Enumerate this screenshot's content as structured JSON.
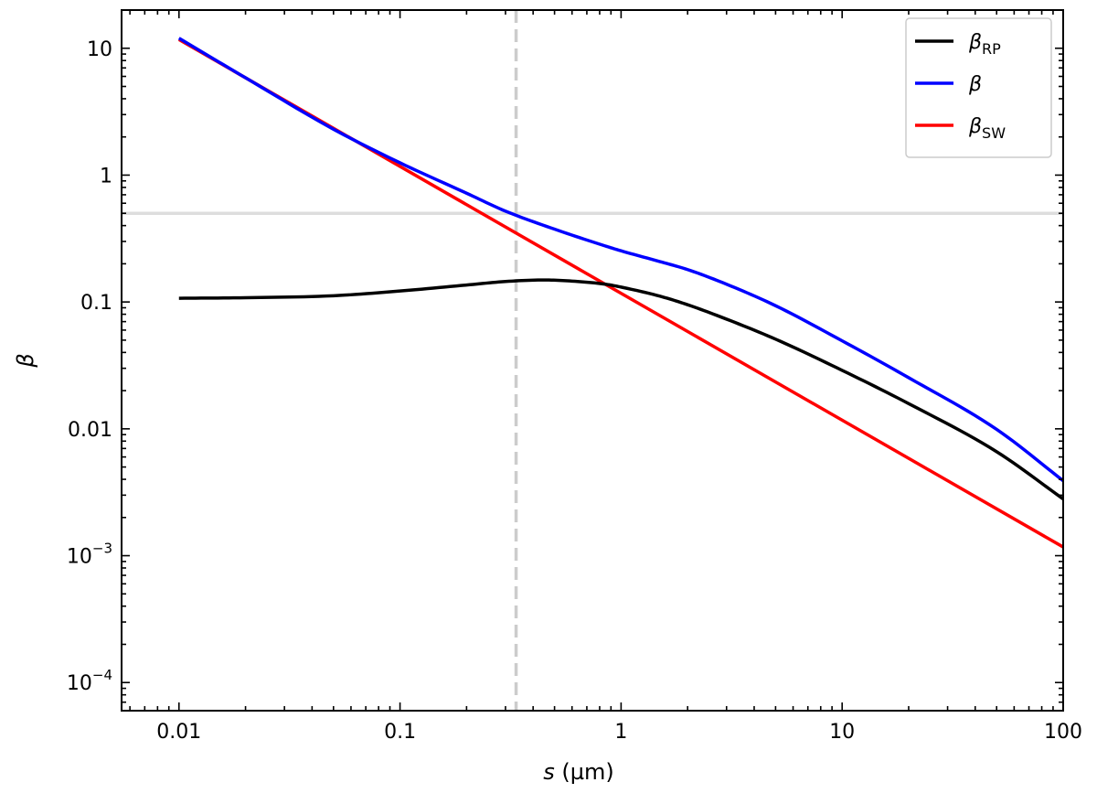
{
  "chart_data": {
    "type": "line",
    "title": "",
    "xlabel": {
      "symbol": "s",
      "unit": " (µm)"
    },
    "ylabel": {
      "symbol": "β"
    },
    "xscale": "log",
    "yscale": "log",
    "xlim": [
      0.0055,
      100
    ],
    "ylim": [
      6e-05,
      20
    ],
    "x_ticks": [
      {
        "value": 0.01,
        "label": "0.01"
      },
      {
        "value": 0.1,
        "label": "0.1"
      },
      {
        "value": 1,
        "label": "1"
      },
      {
        "value": 10,
        "label": "10"
      },
      {
        "value": 100,
        "label": "100"
      }
    ],
    "y_ticks": [
      {
        "value": 10,
        "label": "10"
      },
      {
        "value": 1,
        "label": "1"
      },
      {
        "value": 0.1,
        "label": "0.1"
      },
      {
        "value": 0.01,
        "label": "0.01"
      },
      {
        "value": 0.001,
        "base": "10",
        "exp": "−3"
      },
      {
        "value": 0.0001,
        "base": "10",
        "exp": "−4"
      }
    ],
    "grid": false,
    "legend_position": "top-right",
    "series": [
      {
        "name": "β",
        "subscript": "RP",
        "color": "#000000",
        "x": [
          0.01,
          0.02,
          0.05,
          0.1,
          0.2,
          0.3,
          0.45,
          0.6,
          0.85,
          1.0,
          1.5,
          2.0,
          3.0,
          5.0,
          10,
          20,
          50,
          100
        ],
        "y": [
          0.107,
          0.108,
          0.112,
          0.122,
          0.136,
          0.145,
          0.149,
          0.146,
          0.138,
          0.131,
          0.111,
          0.0951,
          0.0732,
          0.0509,
          0.0289,
          0.0158,
          0.0066,
          0.0028
        ]
      },
      {
        "name": "β",
        "subscript": "",
        "color": "#0000ff",
        "x": [
          0.01,
          0.02,
          0.05,
          0.1,
          0.2,
          0.3,
          0.5,
          0.85,
          1.0,
          1.5,
          2.0,
          3.0,
          5.0,
          10,
          20,
          50,
          100
        ],
        "y": [
          12.0,
          5.85,
          2.3,
          1.25,
          0.72,
          0.52,
          0.375,
          0.276,
          0.253,
          0.208,
          0.18,
          0.138,
          0.0934,
          0.0494,
          0.0253,
          0.0099,
          0.0039
        ]
      },
      {
        "name": "β",
        "subscript": "SW",
        "color": "#ff0000",
        "x": [
          0.01,
          100
        ],
        "y": [
          11.7,
          0.00117
        ]
      }
    ],
    "reference_lines": [
      {
        "orientation": "horizontal",
        "value": 0.5,
        "color": "#dddddd",
        "style": "solid"
      },
      {
        "orientation": "vertical",
        "value": 0.335,
        "color": "#cccccc",
        "style": "dashed"
      }
    ]
  }
}
